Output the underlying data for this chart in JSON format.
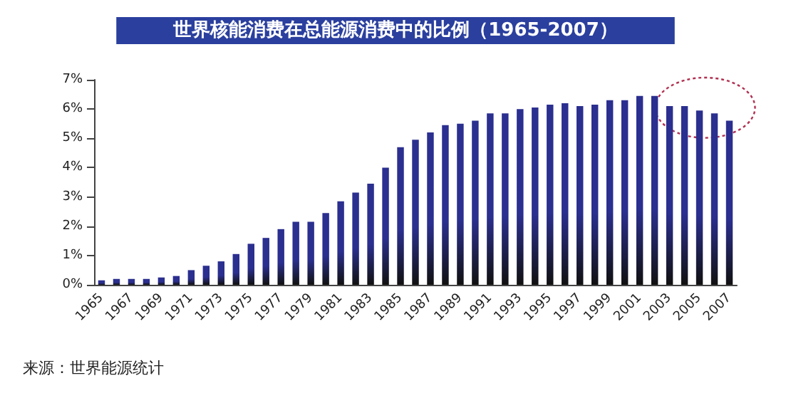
{
  "chart_data": {
    "type": "bar",
    "title": "世界核能消费在总能源消费中的比例（1965-2007）",
    "categories": [
      "1965",
      null,
      "1967",
      null,
      "1969",
      null,
      "1971",
      null,
      "1973",
      null,
      "1975",
      null,
      "1977",
      null,
      "1979",
      null,
      "1981",
      null,
      "1983",
      null,
      "1985",
      null,
      "1987",
      null,
      "1989",
      null,
      "1991",
      null,
      "1993",
      null,
      "1995",
      null,
      "1997",
      null,
      "1999",
      null,
      "2001",
      null,
      "2003",
      null,
      "2005",
      null,
      "2007"
    ],
    "values": [
      0.15,
      0.2,
      0.2,
      0.2,
      0.25,
      0.3,
      0.5,
      0.65,
      0.8,
      1.05,
      1.4,
      1.6,
      1.9,
      2.15,
      2.15,
      2.45,
      2.85,
      3.15,
      3.45,
      4.0,
      4.7,
      4.95,
      5.2,
      5.45,
      5.5,
      5.6,
      5.85,
      5.85,
      6.0,
      6.05,
      6.15,
      6.2,
      6.1,
      6.15,
      6.3,
      6.3,
      6.45,
      6.45,
      6.1,
      6.1,
      5.95,
      5.85,
      5.6
    ],
    "color": "#2b2f8f",
    "ylim": [
      0,
      7
    ],
    "yticks": [
      {
        "value": 0,
        "label": "0%"
      },
      {
        "value": 1,
        "label": "1%"
      },
      {
        "value": 2,
        "label": "2%"
      },
      {
        "value": 3,
        "label": "3%"
      },
      {
        "value": 4,
        "label": "4%"
      },
      {
        "value": 5,
        "label": "5%"
      },
      {
        "value": 6,
        "label": "6%"
      },
      {
        "value": 7,
        "label": "7%"
      }
    ],
    "annotations": [
      "来源：世界能源统计"
    ]
  }
}
